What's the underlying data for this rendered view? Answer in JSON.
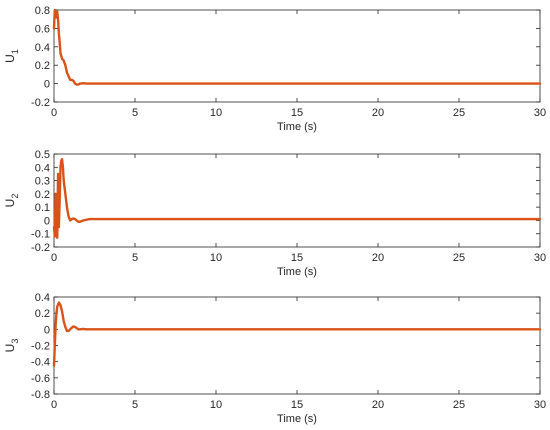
{
  "chart_data": [
    {
      "type": "line",
      "ylabel_main": "U",
      "ylabel_sub": "1",
      "xlabel": "Time (s)",
      "xlim": [
        0,
        30
      ],
      "ylim": [
        -0.2,
        0.8
      ],
      "xticks": [
        "0",
        "5",
        "10",
        "15",
        "20",
        "25",
        "30"
      ],
      "yticks": [
        "-0.2",
        "0",
        "0.2",
        "0.4",
        "0.6",
        "0.8"
      ],
      "grid": false,
      "series": [
        {
          "color": "#d95319",
          "x": [
            0,
            0.05,
            0.1,
            0.15,
            0.2,
            0.25,
            0.3,
            0.35,
            0.4,
            0.5,
            0.6,
            0.7,
            0.8,
            0.9,
            1.0,
            1.1,
            1.2,
            1.3,
            1.4,
            1.5,
            1.6,
            1.7,
            1.8,
            2.0,
            2.2,
            30
          ],
          "y": [
            0.6,
            0.8,
            0.75,
            0.72,
            0.78,
            0.7,
            0.55,
            0.45,
            0.33,
            0.27,
            0.25,
            0.2,
            0.12,
            0.08,
            0.04,
            0.04,
            0.03,
            0.0,
            -0.01,
            -0.01,
            0.0,
            0.0,
            0.005,
            0.0,
            0.0,
            0.0
          ]
        }
      ]
    },
    {
      "type": "line",
      "ylabel_main": "U",
      "ylabel_sub": "2",
      "xlabel": "Time (s)",
      "xlim": [
        0,
        30
      ],
      "ylim": [
        -0.2,
        0.5
      ],
      "xticks": [
        "0",
        "5",
        "10",
        "15",
        "20",
        "25",
        "30"
      ],
      "yticks": [
        "-0.2",
        "-0.1",
        "0",
        "0.1",
        "0.2",
        "0.3",
        "0.4",
        "0.5"
      ],
      "grid": false,
      "series": [
        {
          "color": "#d95319",
          "x": [
            0,
            0.05,
            0.1,
            0.15,
            0.2,
            0.25,
            0.3,
            0.35,
            0.4,
            0.45,
            0.5,
            0.55,
            0.6,
            0.7,
            0.8,
            0.9,
            1.0,
            1.1,
            1.2,
            1.3,
            1.4,
            1.5,
            1.6,
            1.8,
            2.0,
            2.2,
            30
          ],
          "y": [
            -0.05,
            -0.12,
            0.2,
            -0.1,
            -0.13,
            0.35,
            -0.05,
            0.15,
            0.4,
            0.45,
            0.46,
            0.4,
            0.3,
            0.2,
            0.1,
            0.03,
            0.0,
            0.01,
            0.015,
            0.01,
            0.0,
            -0.01,
            -0.01,
            0.0,
            0.005,
            0.01,
            0.01
          ]
        }
      ]
    },
    {
      "type": "line",
      "ylabel_main": "U",
      "ylabel_sub": "3",
      "xlabel": "Time (s)",
      "xlim": [
        0,
        30
      ],
      "ylim": [
        -0.8,
        0.4
      ],
      "xticks": [
        "0",
        "5",
        "10",
        "15",
        "20",
        "25",
        "30"
      ],
      "yticks": [
        "-0.8",
        "-0.6",
        "-0.4",
        "-0.2",
        "0",
        "0.2",
        "0.4"
      ],
      "grid": false,
      "series": [
        {
          "color": "#d95319",
          "x": [
            0,
            0.05,
            0.1,
            0.15,
            0.2,
            0.3,
            0.4,
            0.5,
            0.6,
            0.7,
            0.8,
            0.9,
            1.0,
            1.1,
            1.2,
            1.3,
            1.4,
            1.5,
            1.6,
            1.8,
            2.0,
            30
          ],
          "y": [
            -0.45,
            -0.2,
            0.05,
            0.2,
            0.28,
            0.33,
            0.3,
            0.22,
            0.1,
            0.03,
            -0.02,
            -0.02,
            0.0,
            0.02,
            0.035,
            0.03,
            0.015,
            0.0,
            0.0,
            0.005,
            0.0,
            0.0
          ]
        }
      ]
    }
  ]
}
